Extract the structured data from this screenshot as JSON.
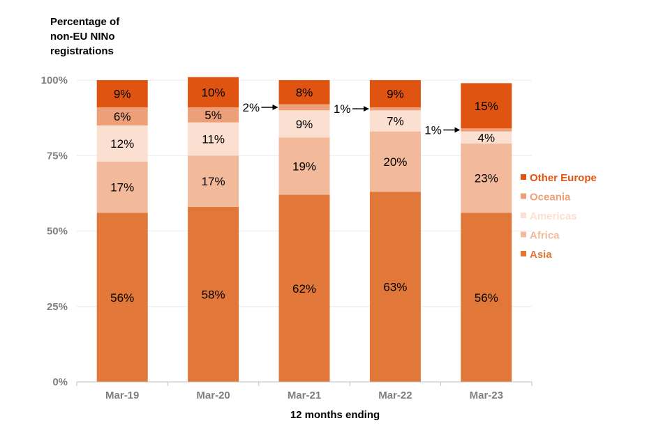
{
  "chart_data": {
    "type": "bar",
    "stacked": true,
    "ylabel_lines": [
      "Percentage of",
      "non-EU NINo",
      "registrations"
    ],
    "xlabel": "12 months ending",
    "categories": [
      "Mar-19",
      "Mar-20",
      "Mar-21",
      "Mar-22",
      "Mar-23"
    ],
    "ylim": [
      0,
      100
    ],
    "yticks": [
      0,
      25,
      50,
      75,
      100
    ],
    "ytick_labels": [
      "0%",
      "25%",
      "50%",
      "75%",
      "100%"
    ],
    "series": [
      {
        "name": "Asia",
        "color": "#e2773a",
        "values": [
          56,
          58,
          62,
          63,
          56
        ],
        "labels": [
          "56%",
          "58%",
          "62%",
          "63%",
          "56%"
        ]
      },
      {
        "name": "Africa",
        "color": "#f2b99b",
        "values": [
          17,
          17,
          19,
          20,
          23
        ],
        "labels": [
          "17%",
          "17%",
          "19%",
          "20%",
          "23%"
        ]
      },
      {
        "name": "Americas",
        "color": "#fbdfd0",
        "values": [
          12,
          11,
          9,
          7,
          4
        ],
        "labels": [
          "12%",
          "11%",
          "9%",
          "7%",
          "4%"
        ]
      },
      {
        "name": "Oceania",
        "color": "#eda078",
        "values": [
          6,
          5,
          2,
          1,
          1
        ],
        "labels": [
          "6%",
          "5%",
          "2%",
          "1%",
          "1%"
        ]
      },
      {
        "name": "Other Europe",
        "color": "#e05412",
        "values": [
          9,
          10,
          8,
          9,
          15
        ],
        "labels": [
          "9%",
          "10%",
          "8%",
          "9%",
          "15%"
        ]
      }
    ],
    "legend_order": [
      "Other Europe",
      "Oceania",
      "Americas",
      "Africa",
      "Asia"
    ],
    "legend_position": "right",
    "gridlines": true,
    "external_labels": [
      {
        "category": "Mar-21",
        "series": "Oceania",
        "text": "2%"
      },
      {
        "category": "Mar-22",
        "series": "Oceania",
        "text": "1%"
      },
      {
        "category": "Mar-23",
        "series": "Oceania",
        "text": "1%"
      }
    ]
  }
}
